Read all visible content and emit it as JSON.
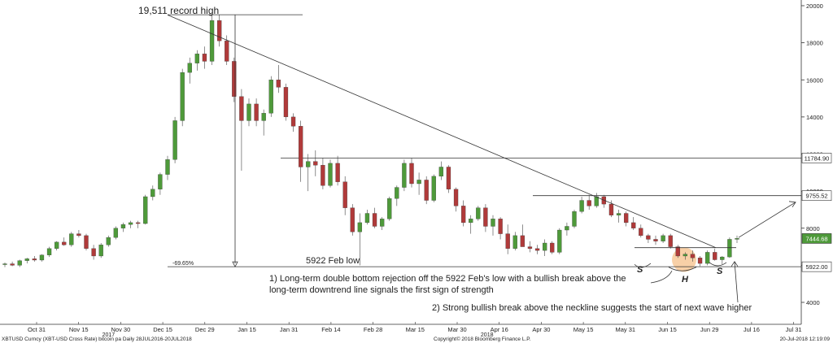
{
  "chart_data": {
    "type": "candlestick",
    "title": "",
    "xlabel": "",
    "ylabel": "",
    "ylim": [
      3000,
      20500
    ],
    "y_ticks": [
      4000,
      6000,
      8000,
      10000,
      12000,
      14000,
      16000,
      18000,
      20000
    ],
    "x_tick_labels": [
      "Oct 31",
      "Nov 15",
      "Nov 30",
      "Dec 15",
      "Dec 29",
      "Jan 15",
      "Jan 31",
      "Feb 14",
      "Feb 28",
      "Mar 15",
      "Mar 30",
      "Apr 16",
      "Apr 30",
      "May 15",
      "May 31",
      "Jun 15",
      "Jun 29",
      "Jul 16",
      "Jul 31"
    ],
    "year_labels": [
      {
        "label": "2017",
        "under": "Nov 30"
      },
      {
        "label": "2018",
        "under": "Apr 16"
      }
    ],
    "up_color": "#4e9a3a",
    "down_color": "#b03a3a",
    "series": [
      {
        "name": "XBTUSD",
        "values": [
          [
            6050,
            6150,
            5900,
            6080
          ],
          [
            6080,
            6200,
            5950,
            6000
          ],
          [
            6000,
            6300,
            5900,
            6250
          ],
          [
            6250,
            6400,
            6100,
            6350
          ],
          [
            6350,
            6500,
            6200,
            6280
          ],
          [
            6280,
            6600,
            6200,
            6550
          ],
          [
            6550,
            7000,
            6450,
            6900
          ],
          [
            6900,
            7300,
            6800,
            7250
          ],
          [
            7250,
            7500,
            7050,
            7100
          ],
          [
            7100,
            7800,
            7000,
            7700
          ],
          [
            7700,
            7900,
            7500,
            7600
          ],
          [
            7600,
            7700,
            6800,
            6900
          ],
          [
            6900,
            7100,
            6300,
            6500
          ],
          [
            6500,
            7200,
            6400,
            7100
          ],
          [
            7100,
            7600,
            7000,
            7500
          ],
          [
            7500,
            8100,
            7400,
            8000
          ],
          [
            8000,
            8300,
            7800,
            8200
          ],
          [
            8200,
            8400,
            8000,
            8300
          ],
          [
            8300,
            8400,
            8000,
            8250
          ],
          [
            8250,
            9800,
            8200,
            9700
          ],
          [
            9700,
            10300,
            9500,
            10100
          ],
          [
            10100,
            11000,
            9800,
            10900
          ],
          [
            10900,
            11900,
            10600,
            11700
          ],
          [
            11700,
            14000,
            11500,
            13800
          ],
          [
            13800,
            16600,
            13500,
            16400
          ],
          [
            16400,
            17200,
            15800,
            16900
          ],
          [
            16900,
            17600,
            16500,
            17400
          ],
          [
            17400,
            17800,
            16600,
            17000
          ],
          [
            17000,
            19500,
            16800,
            19200
          ],
          [
            19200,
            19500,
            17800,
            18100
          ],
          [
            18100,
            18400,
            16800,
            17000
          ],
          [
            17000,
            17200,
            14800,
            15100
          ],
          [
            15100,
            15500,
            11100,
            13800
          ],
          [
            13800,
            15000,
            13500,
            14700
          ],
          [
            14700,
            15000,
            13500,
            13800
          ],
          [
            13800,
            14400,
            13000,
            14200
          ],
          [
            14200,
            16200,
            14000,
            16000
          ],
          [
            16000,
            16800,
            15300,
            15600
          ],
          [
            15600,
            15800,
            13800,
            14000
          ],
          [
            14000,
            14200,
            13200,
            13500
          ],
          [
            13500,
            13800,
            10500,
            11300
          ],
          [
            11300,
            12000,
            10000,
            11600
          ],
          [
            11600,
            12200,
            10800,
            11400
          ],
          [
            11400,
            11800,
            10100,
            10300
          ],
          [
            10300,
            11700,
            10200,
            11500
          ],
          [
            11500,
            11900,
            10300,
            10500
          ],
          [
            10500,
            10800,
            8700,
            9100
          ],
          [
            9100,
            9300,
            7600,
            7800
          ],
          [
            7800,
            8800,
            6000,
            8300
          ],
          [
            8300,
            9000,
            8200,
            8800
          ],
          [
            8800,
            9100,
            8000,
            8100
          ],
          [
            8100,
            8600,
            7900,
            8500
          ],
          [
            8500,
            9700,
            8400,
            9600
          ],
          [
            9600,
            10300,
            9200,
            10200
          ],
          [
            10200,
            11700,
            10000,
            11500
          ],
          [
            11500,
            11800,
            10200,
            10400
          ],
          [
            10400,
            11000,
            9800,
            10600
          ],
          [
            10600,
            10800,
            9300,
            9500
          ],
          [
            9500,
            10900,
            9400,
            10800
          ],
          [
            10800,
            11600,
            10600,
            11300
          ],
          [
            11300,
            11400,
            9900,
            10100
          ],
          [
            10100,
            10200,
            8900,
            9200
          ],
          [
            9200,
            9500,
            8100,
            8300
          ],
          [
            8300,
            8700,
            7700,
            8500
          ],
          [
            8500,
            9200,
            8400,
            9100
          ],
          [
            9100,
            9300,
            7800,
            8100
          ],
          [
            8100,
            8700,
            7600,
            8500
          ],
          [
            8500,
            8600,
            7400,
            7700
          ],
          [
            7700,
            8200,
            6600,
            6900
          ],
          [
            6900,
            7800,
            6800,
            7600
          ],
          [
            7600,
            8200,
            7400,
            7000
          ],
          [
            7000,
            7300,
            6700,
            6900
          ],
          [
            6900,
            7100,
            6600,
            6800
          ],
          [
            6800,
            7400,
            6500,
            7200
          ],
          [
            7200,
            7300,
            6600,
            6700
          ],
          [
            6700,
            8000,
            6600,
            7900
          ],
          [
            7900,
            8300,
            7600,
            8100
          ],
          [
            8100,
            9000,
            8000,
            8900
          ],
          [
            8900,
            9700,
            8800,
            9500
          ],
          [
            9500,
            9800,
            9000,
            9200
          ],
          [
            9200,
            9900,
            9100,
            9700
          ],
          [
            9700,
            9800,
            9100,
            9300
          ],
          [
            9300,
            9500,
            8600,
            8700
          ],
          [
            8700,
            9000,
            8300,
            8800
          ],
          [
            8800,
            8900,
            8100,
            8300
          ],
          [
            8300,
            8600,
            7900,
            8000
          ],
          [
            8000,
            8200,
            7500,
            7600
          ],
          [
            7600,
            7700,
            7200,
            7400
          ],
          [
            7400,
            7600,
            7100,
            7300
          ],
          [
            7300,
            7700,
            7200,
            7600
          ],
          [
            7600,
            7700,
            6900,
            7000
          ],
          [
            7000,
            7100,
            6400,
            6500
          ],
          [
            6500,
            6700,
            6300,
            6600
          ],
          [
            6600,
            6800,
            6200,
            6400
          ],
          [
            6400,
            6500,
            5950,
            6100
          ],
          [
            6100,
            6800,
            6000,
            6700
          ],
          [
            6700,
            6900,
            6250,
            6300
          ],
          [
            6300,
            6500,
            6050,
            6450
          ],
          [
            6450,
            7500,
            6400,
            7400
          ],
          [
            7400,
            7600,
            7200,
            7450
          ]
        ]
      }
    ],
    "annotations": [
      {
        "id": "record_high",
        "text": "19,511 record high"
      },
      {
        "id": "drop_pct",
        "text": "-69.65%"
      },
      {
        "id": "feb_low",
        "text": "5922 Feb low"
      },
      {
        "id": "note1_line1",
        "text": "1) Long-term double bottom rejection off the 5922 Feb's low with a bullish break above the"
      },
      {
        "id": "note1_line2",
        "text": "long-term downtrend line signals the first sign of strength"
      },
      {
        "id": "note2",
        "text": "2) Strong bullish break above the neckline suggests the start of next wave higher"
      },
      {
        "id": "shoulder_left",
        "text": "S"
      },
      {
        "id": "head",
        "text": "H"
      },
      {
        "id": "shoulder_right",
        "text": "S"
      }
    ],
    "price_tags": [
      {
        "value": 11784.9,
        "label": "11784.90",
        "bg": "#ffffff",
        "fg": "#222222"
      },
      {
        "value": 9755.52,
        "label": "9755.52",
        "bg": "#ffffff",
        "fg": "#222222"
      },
      {
        "value": 7444.68,
        "label": "7444.68",
        "bg": "#4e9a3a",
        "fg": "#ffffff"
      },
      {
        "value": 5922.0,
        "label": "5922.00",
        "bg": "#ffffff",
        "fg": "#222222"
      }
    ],
    "reference_levels": [
      19511,
      11784.9,
      9755.52,
      5922
    ],
    "legend": "none",
    "grid": false
  },
  "footer": {
    "left": "XBTUSD Curncy (XBT-USD Cross Rate) bitcoin pa  Daily 28JUL2016-20JUL2018",
    "center": "Copyright© 2018 Bloomberg Finance L.P.",
    "right": "20-Jul-2018 12:19:09"
  }
}
